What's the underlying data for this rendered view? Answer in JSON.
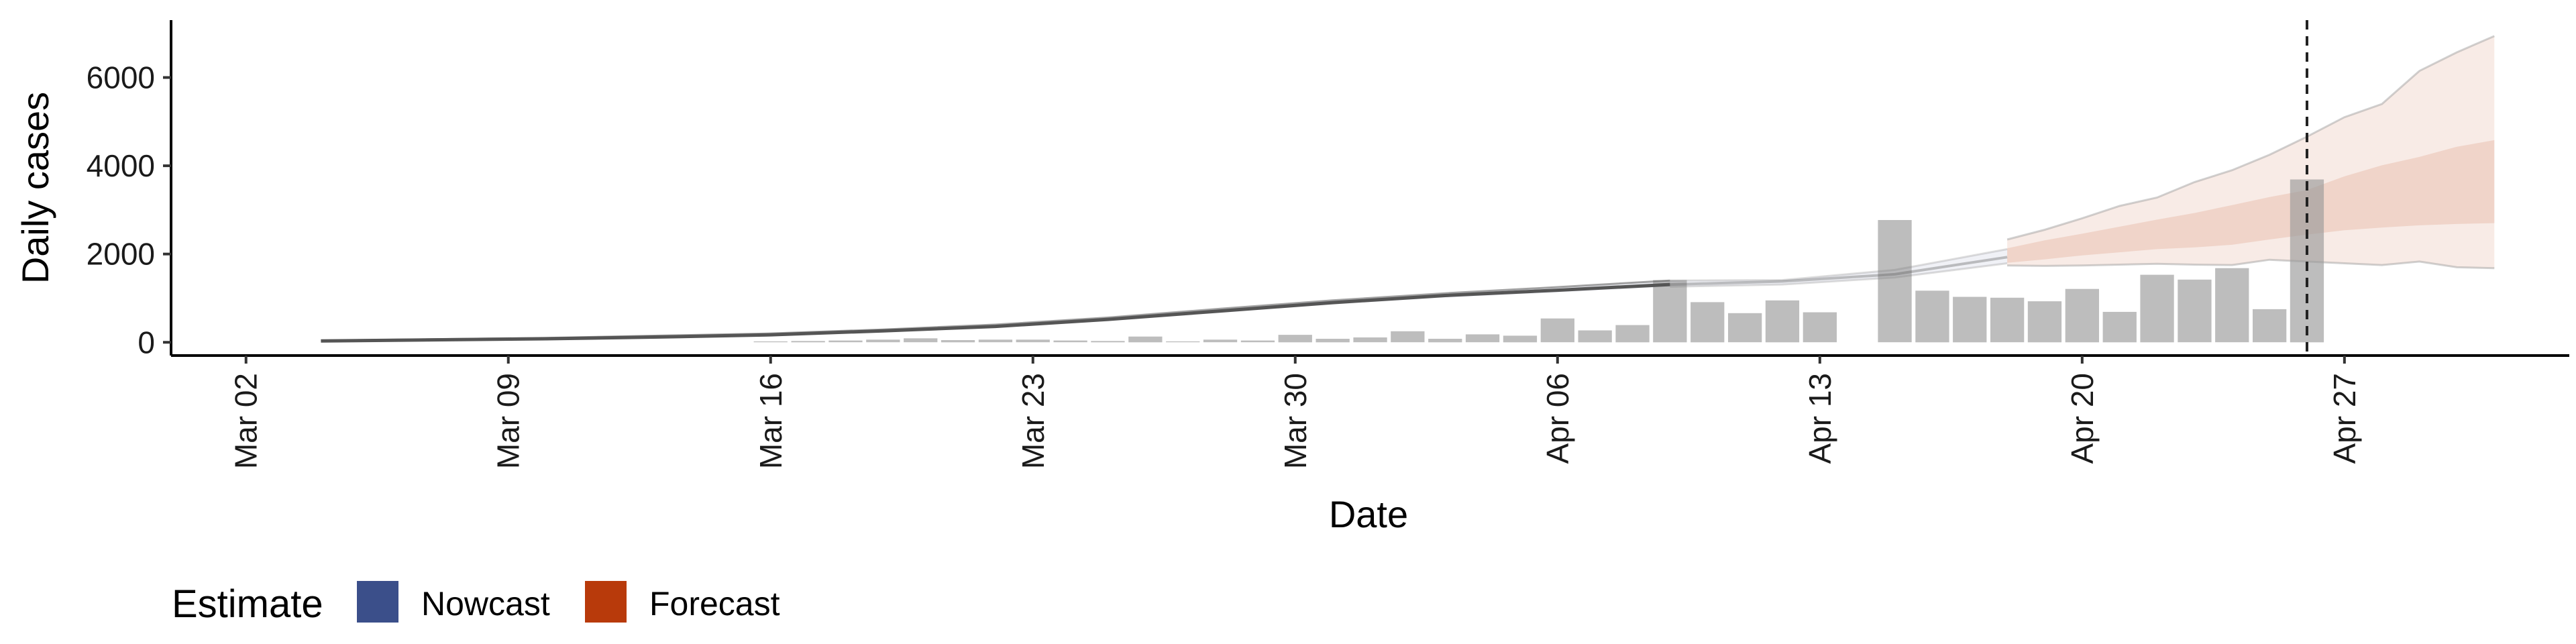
{
  "chart_data": {
    "type": "bar",
    "title": "",
    "xlabel": "Date",
    "ylabel": "Daily cases",
    "xlim": [
      "2020-02-29",
      "2020-05-03"
    ],
    "ylim": [
      -300,
      7300
    ],
    "y_ticks": [
      0,
      2000,
      4000,
      6000
    ],
    "y_tick_labels": [
      "0",
      "2000",
      "4000",
      "6000"
    ],
    "x_ticks": [
      "2020-03-02",
      "2020-03-09",
      "2020-03-16",
      "2020-03-23",
      "2020-03-30",
      "2020-04-06",
      "2020-04-13",
      "2020-04-20",
      "2020-04-27"
    ],
    "x_tick_labels": [
      "Mar 02",
      "Mar 09",
      "Mar 16",
      "Mar 23",
      "Mar 30",
      "Apr 06",
      "Apr 13",
      "Apr 20",
      "Apr 27"
    ],
    "reference_line": "2020-04-26",
    "reported_cases": {
      "dates": [
        "2020-03-16",
        "2020-03-17",
        "2020-03-18",
        "2020-03-19",
        "2020-03-20",
        "2020-03-21",
        "2020-03-22",
        "2020-03-23",
        "2020-03-24",
        "2020-03-25",
        "2020-03-26",
        "2020-03-27",
        "2020-03-28",
        "2020-03-29",
        "2020-03-30",
        "2020-03-31",
        "2020-04-01",
        "2020-04-02",
        "2020-04-03",
        "2020-04-04",
        "2020-04-05",
        "2020-04-06",
        "2020-04-07",
        "2020-04-08",
        "2020-04-09",
        "2020-04-10",
        "2020-04-11",
        "2020-04-12",
        "2020-04-13",
        "2020-04-15",
        "2020-04-16",
        "2020-04-17",
        "2020-04-18",
        "2020-04-19",
        "2020-04-20",
        "2020-04-21",
        "2020-04-22",
        "2020-04-23",
        "2020-04-24",
        "2020-04-25",
        "2020-04-26"
      ],
      "values": [
        20,
        30,
        40,
        60,
        90,
        50,
        60,
        60,
        40,
        30,
        130,
        20,
        60,
        40,
        170,
        80,
        110,
        250,
        80,
        180,
        150,
        540,
        270,
        390,
        1410,
        910,
        660,
        950,
        680,
        2770,
        1170,
        1030,
        1010,
        930,
        1210,
        690,
        1530,
        1420,
        1680,
        750,
        3690
      ]
    },
    "series": [
      {
        "name": "Nowcast",
        "color": "#3b4f8a",
        "dates": [
          "2020-03-04",
          "2020-03-07",
          "2020-03-10",
          "2020-03-13",
          "2020-03-16",
          "2020-03-19",
          "2020-03-22",
          "2020-03-25",
          "2020-03-28",
          "2020-03-31",
          "2020-04-03",
          "2020-04-06",
          "2020-04-09",
          "2020-04-12",
          "2020-04-15",
          "2020-04-18"
        ],
        "median": [
          30,
          55,
          80,
          120,
          170,
          260,
          360,
          520,
          710,
          900,
          1060,
          1180,
          1310,
          1380,
          1540,
          1930
        ],
        "lower_90": [
          20,
          40,
          65,
          100,
          150,
          230,
          330,
          480,
          670,
          860,
          1010,
          1130,
          1260,
          1310,
          1470,
          1790
        ],
        "upper_90": [
          40,
          70,
          100,
          150,
          200,
          290,
          400,
          560,
          760,
          950,
          1110,
          1250,
          1400,
          1410,
          1640,
          2110
        ]
      },
      {
        "name": "Forecast",
        "color": "#b83a0b",
        "dates": [
          "2020-04-18",
          "2020-04-19",
          "2020-04-20",
          "2020-04-21",
          "2020-04-22",
          "2020-04-23",
          "2020-04-24",
          "2020-04-25",
          "2020-04-26",
          "2020-04-27",
          "2020-04-28",
          "2020-04-29",
          "2020-04-30",
          "2020-05-01"
        ],
        "median": [
          1960,
          2090,
          2210,
          2330,
          2460,
          2550,
          2670,
          2810,
          2890,
          2960,
          3000,
          3030,
          3060,
          3040
        ],
        "lower_50": [
          1800,
          1880,
          1970,
          2040,
          2110,
          2150,
          2210,
          2330,
          2440,
          2540,
          2600,
          2650,
          2680,
          2700
        ],
        "upper_50": [
          2130,
          2310,
          2460,
          2620,
          2780,
          2930,
          3110,
          3290,
          3450,
          3760,
          4010,
          4200,
          4430,
          4580
        ],
        "lower_90": [
          1740,
          1730,
          1740,
          1760,
          1780,
          1760,
          1750,
          1870,
          1830,
          1790,
          1750,
          1830,
          1700,
          1680
        ],
        "upper_90": [
          2330,
          2550,
          2810,
          3090,
          3280,
          3630,
          3900,
          4250,
          4660,
          5100,
          5400,
          6150,
          6570,
          6940
        ]
      }
    ],
    "legend": {
      "title": "Estimate",
      "position": "bottom",
      "items": [
        {
          "label": "Nowcast",
          "color": "#3b4f8a"
        },
        {
          "label": "Forecast",
          "color": "#b83a0b"
        }
      ]
    }
  }
}
